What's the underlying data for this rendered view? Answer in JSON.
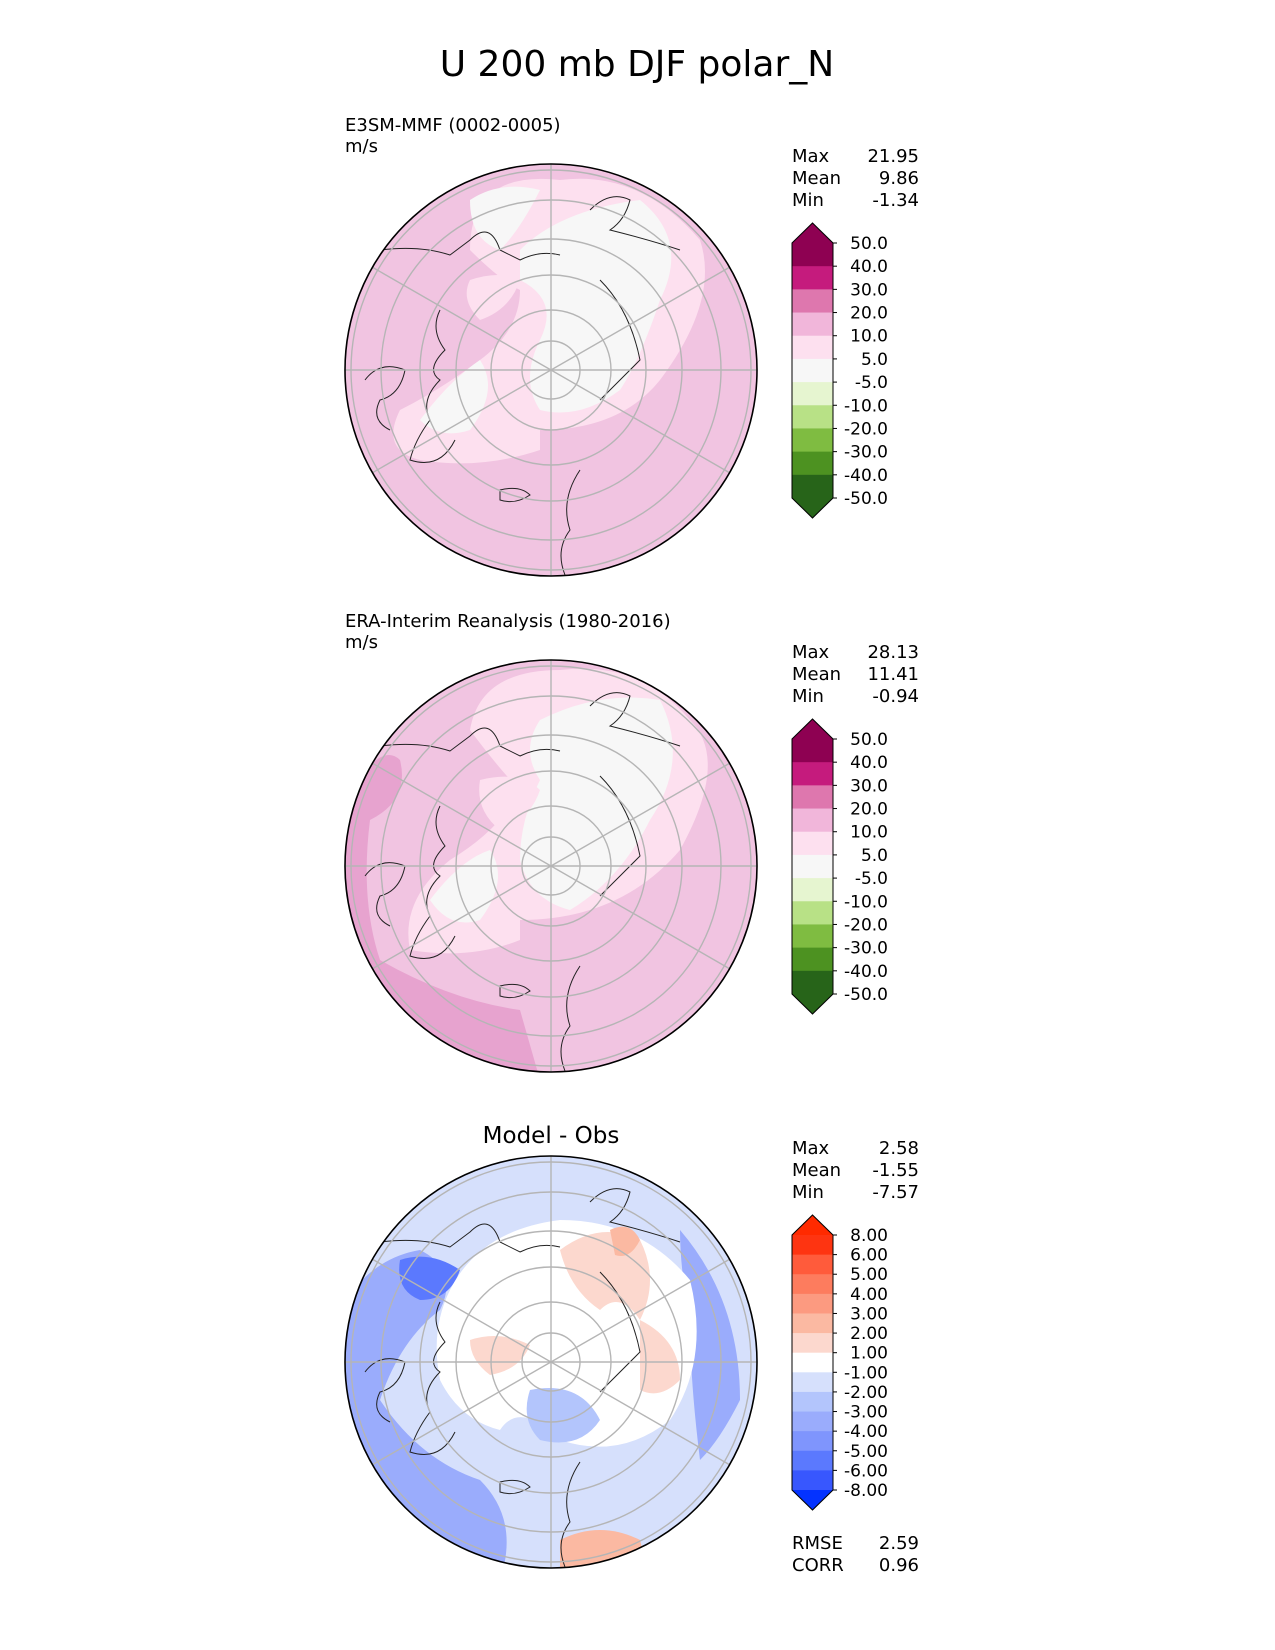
{
  "figure": {
    "title": "U 200 mb DJF polar_N"
  },
  "panels": [
    {
      "id": "model",
      "heading": "",
      "name": "E3SM-MMF (0002-0005)",
      "units": "m/s",
      "stats": [
        {
          "label": "Max",
          "value": "21.95"
        },
        {
          "label": "Mean",
          "value": "9.86"
        },
        {
          "label": "Min",
          "value": "-1.34"
        }
      ],
      "colorbar": {
        "ticks": [
          "50.0",
          "40.0",
          "30.0",
          "20.0",
          "10.0",
          "5.0",
          "-5.0",
          "-10.0",
          "-20.0",
          "-30.0",
          "-40.0",
          "-50.0"
        ],
        "colors": [
          "#8e0152",
          "#c51b7d",
          "#de77ae",
          "#f1b6da",
          "#fde0ef",
          "#f7f7f7",
          "#e6f5d0",
          "#b8e186",
          "#7fbc41",
          "#4d9221",
          "#276419"
        ],
        "extend_top": "#8e0152",
        "extend_bottom": "#276419"
      }
    },
    {
      "id": "obs",
      "heading": "",
      "name": "ERA-Interim Reanalysis (1980-2016)",
      "units": "m/s",
      "stats": [
        {
          "label": "Max",
          "value": "28.13"
        },
        {
          "label": "Mean",
          "value": "11.41"
        },
        {
          "label": "Min",
          "value": "-0.94"
        }
      ],
      "colorbar": {
        "ticks": [
          "50.0",
          "40.0",
          "30.0",
          "20.0",
          "10.0",
          "5.0",
          "-5.0",
          "-10.0",
          "-20.0",
          "-30.0",
          "-40.0",
          "-50.0"
        ],
        "colors": [
          "#8e0152",
          "#c51b7d",
          "#de77ae",
          "#f1b6da",
          "#fde0ef",
          "#f7f7f7",
          "#e6f5d0",
          "#b8e186",
          "#7fbc41",
          "#4d9221",
          "#276419"
        ],
        "extend_top": "#8e0152",
        "extend_bottom": "#276419"
      }
    },
    {
      "id": "diff",
      "heading": "Model - Obs",
      "name": "",
      "units": "",
      "stats": [
        {
          "label": "Max",
          "value": "2.58"
        },
        {
          "label": "Mean",
          "value": "-1.55"
        },
        {
          "label": "Min",
          "value": "-7.57"
        }
      ],
      "colorbar": {
        "ticks": [
          "8.00",
          "6.00",
          "5.00",
          "4.00",
          "3.00",
          "2.00",
          "1.00",
          "-1.00",
          "-2.00",
          "-3.00",
          "-4.00",
          "-5.00",
          "-6.00",
          "-8.00"
        ],
        "colors": [
          "#fe3411",
          "#ff5b3b",
          "#fd7c5e",
          "#fc9a80",
          "#fbb9a2",
          "#fcd8ce",
          "#ffffff",
          "#d6e0fc",
          "#b3c5fc",
          "#9aacfc",
          "#7f95fd",
          "#5b79fe",
          "#3857fe"
        ],
        "extend_top": "#ff2a00",
        "extend_bottom": "#0433ff"
      },
      "extra_stats": [
        {
          "label": "RMSE",
          "value": "2.59"
        },
        {
          "label": "CORR",
          "value": "0.96"
        }
      ]
    }
  ],
  "chart_data": [
    {
      "type": "heatmap",
      "projection": "north polar stereographic",
      "title": "E3SM-MMF (0002-0005)",
      "units": "m/s",
      "colorbar_levels": [
        -50,
        -40,
        -30,
        -20,
        -10,
        -5,
        5,
        10,
        20,
        30,
        40,
        50
      ],
      "stats": {
        "max": 21.95,
        "mean": 9.86,
        "min": -1.34
      },
      "colors": [
        "#f7f7f7",
        "#fde0ef",
        "#f1b6da",
        "#de77ae"
      ]
    },
    {
      "type": "heatmap",
      "projection": "north polar stereographic",
      "title": "ERA-Interim Reanalysis (1980-2016)",
      "units": "m/s",
      "colorbar_levels": [
        -50,
        -40,
        -30,
        -20,
        -10,
        -5,
        5,
        10,
        20,
        30,
        40,
        50
      ],
      "stats": {
        "max": 28.13,
        "mean": 11.41,
        "min": -0.94
      },
      "colors": [
        "#f7f7f7",
        "#fde0ef",
        "#f1b6da",
        "#de77ae"
      ]
    },
    {
      "type": "heatmap",
      "projection": "north polar stereographic",
      "title": "Model - Obs",
      "colorbar_levels": [
        -8,
        -6,
        -5,
        -4,
        -3,
        -2,
        -1,
        1,
        2,
        3,
        4,
        5,
        6,
        8
      ],
      "stats": {
        "max": 2.58,
        "mean": -1.55,
        "min": -7.57,
        "rmse": 2.59,
        "corr": 0.96
      },
      "colors": [
        "#ffffff",
        "#d6e0fc",
        "#b3c5fc",
        "#7f95fd",
        "#3857fe",
        "#fcd8ce",
        "#fbb9a2"
      ]
    }
  ]
}
